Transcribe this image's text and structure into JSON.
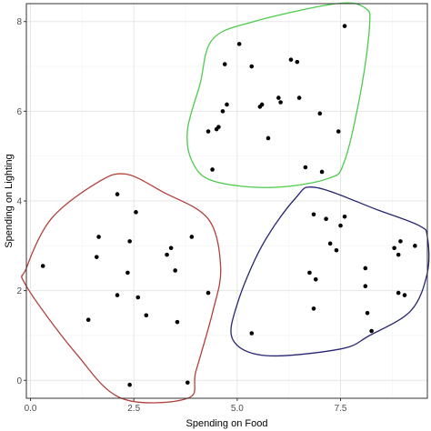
{
  "chart_data": {
    "type": "scatter",
    "xlabel": "Spending on Food",
    "ylabel": "Spending on Lighting",
    "xlim": [
      -0.1,
      9.6
    ],
    "ylim": [
      -0.4,
      8.4
    ],
    "x_ticks": [
      0,
      2.5,
      5,
      7.5
    ],
    "x_tick_labels": [
      "0.0",
      "2.5",
      "5.0",
      "7.5"
    ],
    "y_ticks": [
      0,
      2,
      4,
      6,
      8
    ],
    "y_tick_labels": [
      "0",
      "2",
      "4",
      "6",
      "8"
    ],
    "grid": true,
    "legend": "none",
    "points": [
      {
        "x": 0.3,
        "y": 2.55
      },
      {
        "x": 1.4,
        "y": 1.35
      },
      {
        "x": 1.6,
        "y": 2.75
      },
      {
        "x": 1.65,
        "y": 3.2
      },
      {
        "x": 2.1,
        "y": 4.15
      },
      {
        "x": 2.1,
        "y": 1.9
      },
      {
        "x": 2.35,
        "y": 2.4
      },
      {
        "x": 2.4,
        "y": 3.1
      },
      {
        "x": 2.55,
        "y": 3.75
      },
      {
        "x": 2.6,
        "y": 1.85
      },
      {
        "x": 2.8,
        "y": 1.45
      },
      {
        "x": 2.4,
        "y": -0.1
      },
      {
        "x": 3.3,
        "y": 2.8
      },
      {
        "x": 3.4,
        "y": 2.95
      },
      {
        "x": 3.5,
        "y": 2.45
      },
      {
        "x": 3.55,
        "y": 1.3
      },
      {
        "x": 3.9,
        "y": 3.2
      },
      {
        "x": 4.3,
        "y": 1.95
      },
      {
        "x": 3.8,
        "y": -0.05
      },
      {
        "x": 4.3,
        "y": 5.55
      },
      {
        "x": 4.4,
        "y": 4.7
      },
      {
        "x": 4.5,
        "y": 5.6
      },
      {
        "x": 4.55,
        "y": 5.65
      },
      {
        "x": 4.65,
        "y": 6.0
      },
      {
        "x": 4.7,
        "y": 7.05
      },
      {
        "x": 4.75,
        "y": 6.15
      },
      {
        "x": 5.05,
        "y": 7.5
      },
      {
        "x": 5.35,
        "y": 7.0
      },
      {
        "x": 5.55,
        "y": 6.1
      },
      {
        "x": 5.6,
        "y": 6.15
      },
      {
        "x": 5.75,
        "y": 5.4
      },
      {
        "x": 6.0,
        "y": 6.3
      },
      {
        "x": 6.05,
        "y": 6.2
      },
      {
        "x": 6.3,
        "y": 7.15
      },
      {
        "x": 6.45,
        "y": 7.1
      },
      {
        "x": 6.5,
        "y": 6.3
      },
      {
        "x": 6.65,
        "y": 4.75
      },
      {
        "x": 7.0,
        "y": 5.95
      },
      {
        "x": 7.05,
        "y": 4.65
      },
      {
        "x": 7.45,
        "y": 5.55
      },
      {
        "x": 7.6,
        "y": 7.9
      },
      {
        "x": 5.35,
        "y": 1.05
      },
      {
        "x": 6.75,
        "y": 2.4
      },
      {
        "x": 6.85,
        "y": 3.7
      },
      {
        "x": 6.85,
        "y": 1.6
      },
      {
        "x": 6.9,
        "y": 2.25
      },
      {
        "x": 7.15,
        "y": 3.6
      },
      {
        "x": 7.25,
        "y": 3.05
      },
      {
        "x": 7.4,
        "y": 2.9
      },
      {
        "x": 7.5,
        "y": 3.45
      },
      {
        "x": 7.6,
        "y": 3.65
      },
      {
        "x": 8.1,
        "y": 2.5
      },
      {
        "x": 8.1,
        "y": 2.1
      },
      {
        "x": 8.15,
        "y": 1.5
      },
      {
        "x": 8.25,
        "y": 1.1
      },
      {
        "x": 8.8,
        "y": 2.95
      },
      {
        "x": 8.9,
        "y": 2.8
      },
      {
        "x": 8.9,
        "y": 1.95
      },
      {
        "x": 8.95,
        "y": 3.1
      },
      {
        "x": 9.05,
        "y": 1.9
      },
      {
        "x": 9.3,
        "y": 3.0
      }
    ],
    "clusters": [
      {
        "color": "#b2413c",
        "outline": [
          [
            -0.1,
            2.5
          ],
          [
            0.5,
            3.6
          ],
          [
            1.6,
            4.4
          ],
          [
            2.3,
            4.6
          ],
          [
            3.2,
            4.2
          ],
          [
            4.3,
            3.6
          ],
          [
            4.6,
            2.5
          ],
          [
            4.4,
            1.5
          ],
          [
            4.0,
            0.2
          ],
          [
            3.8,
            -0.4
          ],
          [
            2.2,
            -0.4
          ],
          [
            1.1,
            0.6
          ],
          [
            -0.1,
            2.1
          ]
        ]
      },
      {
        "color": "#4ccb4c",
        "outline": [
          [
            4.4,
            7.6
          ],
          [
            5.4,
            8.0
          ],
          [
            7.4,
            8.4
          ],
          [
            8.1,
            8.3
          ],
          [
            8.2,
            7.9
          ],
          [
            8.0,
            6.5
          ],
          [
            7.6,
            4.9
          ],
          [
            7.2,
            4.5
          ],
          [
            5.8,
            4.3
          ],
          [
            4.4,
            4.45
          ],
          [
            3.9,
            4.9
          ],
          [
            3.8,
            5.6
          ],
          [
            4.1,
            6.6
          ]
        ]
      },
      {
        "color": "#262673",
        "outline": [
          [
            6.4,
            4.05
          ],
          [
            6.9,
            4.3
          ],
          [
            8.4,
            3.8
          ],
          [
            9.4,
            3.45
          ],
          [
            9.6,
            3.2
          ],
          [
            9.6,
            2.4
          ],
          [
            9.2,
            1.55
          ],
          [
            8.2,
            1.0
          ],
          [
            7.5,
            0.7
          ],
          [
            5.7,
            0.55
          ],
          [
            4.9,
            0.9
          ],
          [
            5.0,
            1.7
          ],
          [
            5.6,
            3.0
          ]
        ]
      }
    ]
  }
}
